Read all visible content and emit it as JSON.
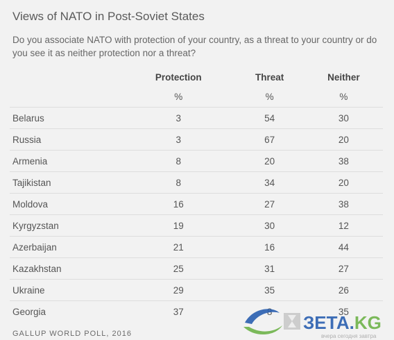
{
  "chart_data": {
    "type": "table",
    "title": "Views of NATO in Post-Soviet States",
    "question": "Do you associate NATO with protection of your country, as a threat to your country or do you see it as neither protection nor a threat?",
    "columns": [
      "Protection",
      "Threat",
      "Neither"
    ],
    "units": [
      "%",
      "%",
      "%"
    ],
    "rows": [
      {
        "country": "Belarus",
        "values": [
          "3",
          "54",
          "30"
        ]
      },
      {
        "country": "Russia",
        "values": [
          "3",
          "67",
          "20"
        ]
      },
      {
        "country": "Armenia",
        "values": [
          "8",
          "20",
          "38"
        ]
      },
      {
        "country": "Tajikistan",
        "values": [
          "8",
          "34",
          "20"
        ]
      },
      {
        "country": "Moldova",
        "values": [
          "16",
          "27",
          "38"
        ]
      },
      {
        "country": "Kyrgyzstan",
        "values": [
          "19",
          "30",
          "12"
        ]
      },
      {
        "country": "Azerbaijan",
        "values": [
          "21",
          "16",
          "44"
        ]
      },
      {
        "country": "Kazakhstan",
        "values": [
          "25",
          "31",
          "27"
        ]
      },
      {
        "country": "Ukraine",
        "values": [
          "29",
          "35",
          "26"
        ]
      },
      {
        "country": "Georgia",
        "values": [
          "37",
          "8",
          "35"
        ]
      }
    ],
    "source": "GALLUP WORLD POLL, 2016"
  },
  "watermark": {
    "text": "ЗЕТА.KG",
    "tagline": "вчера сегодня завтра",
    "colors": {
      "blue": "#2a5fb0",
      "green": "#6fb34a",
      "gray": "#a8a8a8"
    }
  }
}
